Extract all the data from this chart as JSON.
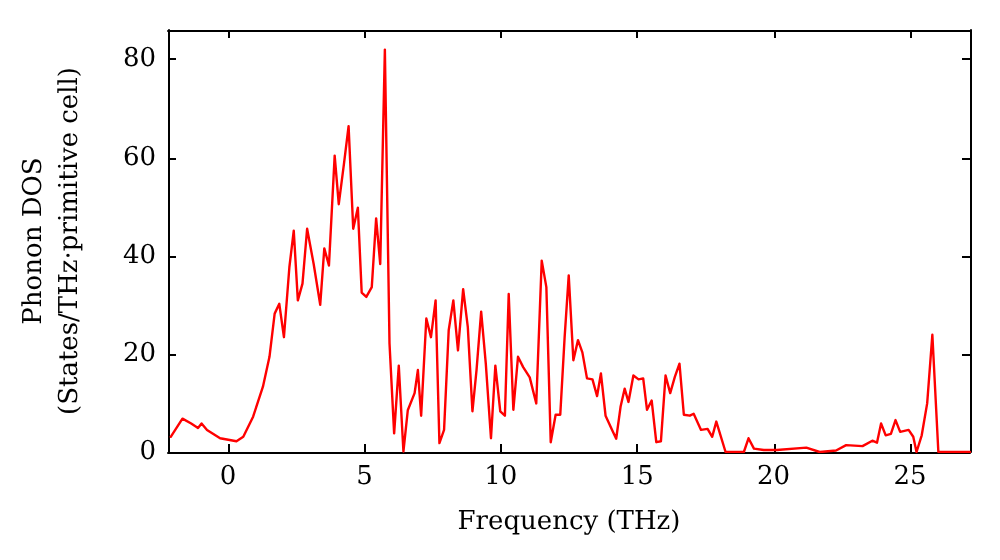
{
  "chart_data": {
    "type": "line",
    "xlabel": "Frequency (THz)",
    "ylabel": "Phonon DOS\n(States/THz·primitive cell)",
    "xlim": [
      -2.2,
      27.2
    ],
    "xticks": [
      0,
      5,
      10,
      15,
      20,
      25
    ],
    "ylim": [
      0,
      86
    ],
    "yticks": [
      0,
      20,
      40,
      60,
      80
    ],
    "grid": false,
    "marker": "none",
    "line_style": "solid",
    "series": [
      {
        "color": "#ff0000",
        "x": [
          -2.1,
          -1.67,
          -1.35,
          -1.1,
          -0.97,
          -0.77,
          -0.29,
          0.31,
          0.56,
          0.92,
          1.28,
          1.52,
          1.71,
          1.88,
          2.05,
          2.25,
          2.41,
          2.56,
          2.73,
          2.9,
          3.14,
          3.38,
          3.53,
          3.7,
          3.91,
          4.06,
          4.25,
          4.42,
          4.59,
          4.76,
          4.9,
          5.07,
          5.27,
          5.43,
          5.58,
          5.75,
          5.92,
          6.09,
          6.26,
          6.43,
          6.59,
          6.84,
          6.96,
          7.08,
          7.27,
          7.44,
          7.61,
          7.75,
          7.92,
          8.09,
          8.26,
          8.43,
          8.62,
          8.79,
          8.96,
          9.11,
          9.28,
          9.45,
          9.64,
          9.8,
          9.98,
          10.15,
          10.29,
          10.46,
          10.63,
          10.82,
          11.06,
          11.3,
          11.5,
          11.67,
          11.83,
          12.01,
          12.18,
          12.34,
          12.49,
          12.66,
          12.83,
          12.99,
          13.16,
          13.36,
          13.53,
          13.67,
          13.84,
          14.08,
          14.23,
          14.39,
          14.54,
          14.68,
          14.86,
          15.05,
          15.22,
          15.36,
          15.53,
          15.7,
          15.87,
          16.04,
          16.21,
          16.38,
          16.55,
          16.71,
          16.93,
          17.07,
          17.34,
          17.58,
          17.75,
          17.9,
          18.24,
          18.91,
          19.08,
          19.28,
          19.64,
          20.12,
          21.2,
          21.69,
          22.29,
          22.66,
          23.26,
          23.62,
          23.79,
          23.94,
          24.11,
          24.3,
          24.47,
          24.64,
          24.95,
          25.12,
          25.24,
          25.43,
          25.63,
          25.82,
          26.04,
          27.2
        ],
        "values": [
          3.1,
          6.8,
          5.8,
          4.9,
          5.8,
          4.5,
          2.8,
          2.2,
          3.1,
          7.2,
          13.3,
          19.4,
          28.2,
          30.2,
          23.4,
          37.7,
          45.1,
          30.9,
          34.3,
          45.5,
          38.3,
          30,
          41.5,
          38,
          60.4,
          50.5,
          58.7,
          66.4,
          45.5,
          49.8,
          32.5,
          31.6,
          33.6,
          47.6,
          38.3,
          82,
          22.1,
          3.8,
          17.6,
          0.1,
          8.5,
          12,
          16.7,
          7.4,
          27.2,
          23.4,
          30.9,
          1.8,
          4.5,
          24.8,
          30.9,
          20.7,
          33.2,
          25.5,
          8.3,
          16.7,
          28.6,
          18,
          2.8,
          17.6,
          8.3,
          7.4,
          32.2,
          8.6,
          19.4,
          17.3,
          15.2,
          9.9,
          39,
          33.6,
          2,
          7.6,
          7.6,
          23.4,
          36,
          18.7,
          22.8,
          20.3,
          15,
          14.8,
          11.4,
          16,
          7.4,
          4.5,
          2.7,
          9.2,
          12.9,
          10.2,
          15.6,
          14.8,
          15,
          8.6,
          10.5,
          2,
          2.2,
          15.6,
          12,
          15.3,
          18,
          7.6,
          7.4,
          7.8,
          4.5,
          4.7,
          3.1,
          6.2,
          0,
          0,
          2.8,
          0.7,
          0.4,
          0.4,
          0.9,
          0,
          0.3,
          1.4,
          1.2,
          2.3,
          1.9,
          5.8,
          3.4,
          3.7,
          6.5,
          4.1,
          4.5,
          3.1,
          0,
          3.4,
          9.9,
          23.9,
          0,
          0
        ]
      }
    ]
  }
}
